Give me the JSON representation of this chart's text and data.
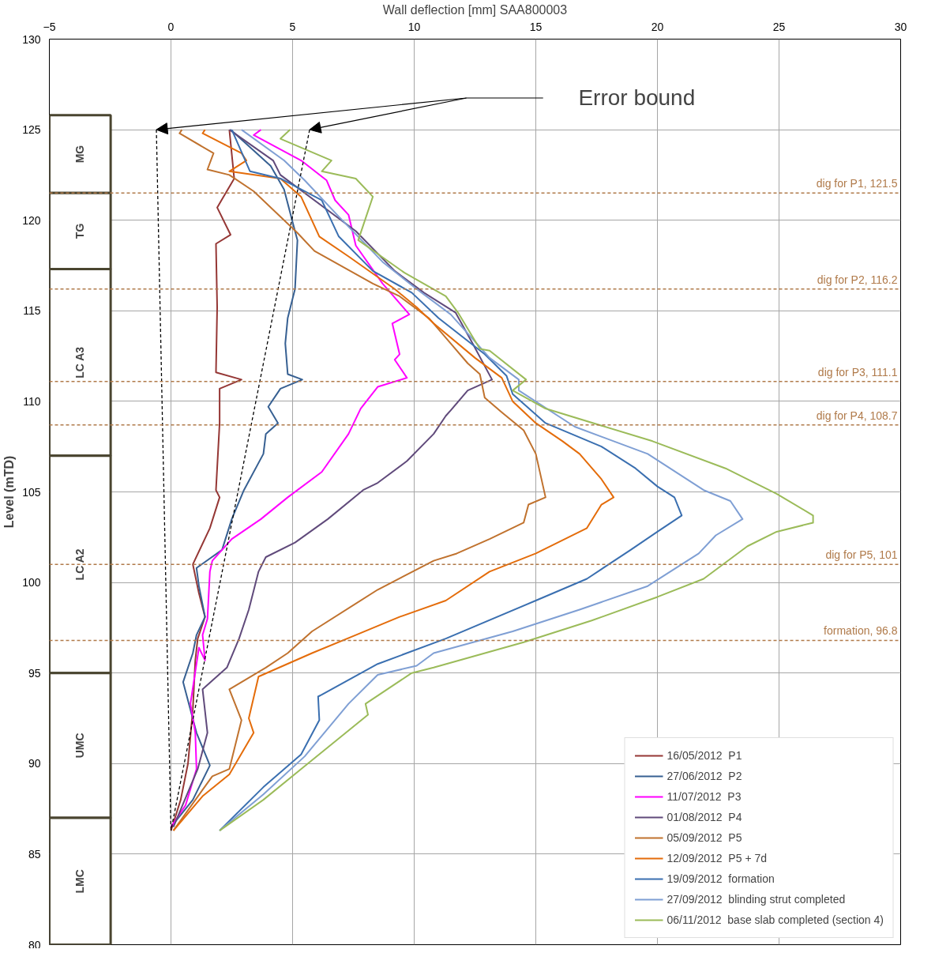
{
  "chart_data": {
    "type": "line",
    "xlabel": "Wall deflection [mm] SAA800003",
    "ylabel": "Level (mTD)",
    "xlim": [
      -5,
      30
    ],
    "xticks": [
      -5,
      0,
      5,
      10,
      15,
      20,
      25,
      30
    ],
    "ylim": [
      80,
      130
    ],
    "yticks": [
      80,
      85,
      90,
      95,
      100,
      105,
      110,
      115,
      120,
      125,
      130
    ],
    "grid": true,
    "legend": "bottom right",
    "line_style": "solid",
    "marker": "none",
    "series": [
      {
        "name": "16/05/2012  P1",
        "color": "#953735",
        "x": [
          2.4,
          2.6,
          1.9,
          2.45,
          1.85,
          1.9,
          1.85,
          2.9,
          2.0,
          2.0,
          1.85,
          2.0,
          1.6,
          0.9,
          1.15,
          1.4,
          1.1,
          1.0,
          0.9,
          0.7,
          0.4,
          0
        ],
        "values": [
          125,
          122.3,
          120.7,
          119.2,
          118.7,
          115.2,
          111.6,
          111.2,
          110.7,
          108.8,
          105.1,
          104.7,
          103,
          101,
          99.4,
          98.1,
          96.9,
          95.7,
          93,
          90,
          88,
          86.3
        ]
      },
      {
        "name": "27/06/2012  P2",
        "color": "#376092",
        "x": [
          2.45,
          4.1,
          4.65,
          5.0,
          5.2,
          5.1,
          4.8,
          4.7,
          4.8,
          5.4,
          4.5,
          4.0,
          4.4,
          3.9,
          3.8,
          3.0,
          2.5,
          2.1,
          1.05,
          1.15,
          1.4,
          1.05,
          0.9,
          0.5,
          1.05,
          1.6,
          0.9,
          0
        ],
        "values": [
          125,
          123,
          121.7,
          119.9,
          118.9,
          116.2,
          114.6,
          113.2,
          111.5,
          111.2,
          110.7,
          109.7,
          108.8,
          108.2,
          107.1,
          105.1,
          103.5,
          101.8,
          100.8,
          99.8,
          98.1,
          97.1,
          96.1,
          94.5,
          91.7,
          89.9,
          88,
          86.5
        ]
      },
      {
        "name": "11/07/2012  P3",
        "color": "#ff00ff",
        "x": [
          3.7,
          3.4,
          5.35,
          6.4,
          6.75,
          7.3,
          7.6,
          8.7,
          9.8,
          9.1,
          9.4,
          9.2,
          9.7,
          8.5,
          7.8,
          7.3,
          6.2,
          4.8,
          3.7,
          2.5,
          1.7,
          1.6,
          1.5,
          1.3,
          1.4,
          1.15,
          0.8,
          1.0,
          1.05,
          0.6,
          0
        ],
        "values": [
          125,
          124.7,
          123.3,
          122.2,
          121.1,
          120.3,
          118.6,
          116.5,
          114.8,
          114.3,
          112.6,
          112.3,
          111.3,
          110.8,
          109.6,
          108.2,
          106.1,
          104.7,
          103.5,
          102.4,
          101.2,
          100.6,
          98,
          97.1,
          95.7,
          96.4,
          93.3,
          91.7,
          89.7,
          87.7,
          86.5
        ]
      },
      {
        "name": "01/08/2012  P4",
        "color": "#604a7b",
        "x": [
          2.4,
          4.2,
          4.5,
          7.6,
          9.2,
          10.4,
          11.7,
          12.4,
          13.2,
          12.2,
          11.5,
          11.3,
          10.8,
          9.7,
          8.5,
          7.9,
          6.45,
          5.1,
          3.9,
          3.6,
          3.2,
          2.8,
          2.3,
          1.3,
          1.5,
          1.1,
          0.1
        ],
        "values": [
          125,
          123.3,
          122.5,
          119.4,
          117.2,
          116,
          114.9,
          113.2,
          111.2,
          110.6,
          109.5,
          109.2,
          108.2,
          106.7,
          105.5,
          105.1,
          103.5,
          102.2,
          101.4,
          100.6,
          98.5,
          96.9,
          95.3,
          94.1,
          91.7,
          89.7,
          86.5
        ]
      },
      {
        "name": "05/09/2012  P5",
        "color": "#c0722e",
        "x": [
          0.45,
          0.35,
          1.75,
          1.5,
          2.4,
          3.4,
          5.2,
          5.9,
          8.3,
          9.4,
          10.6,
          11.5,
          12.2,
          12.7,
          12.9,
          13.6,
          14.5,
          15.0,
          15.2,
          15.4,
          14.7,
          14.5,
          13.1,
          11.75,
          10.8,
          8.5,
          5.8,
          4.8,
          3.9,
          2.4,
          2.9,
          2.4,
          1.7,
          0.1
        ],
        "values": [
          125,
          124.8,
          123.7,
          122.8,
          122.5,
          121.6,
          119.3,
          118.3,
          116.5,
          115.8,
          114.6,
          113.2,
          112.1,
          111.5,
          110.2,
          109.4,
          108.4,
          107.1,
          105.9,
          104.7,
          104.3,
          103.3,
          102.4,
          101.6,
          101.2,
          99.6,
          97.3,
          96.1,
          95.3,
          94.1,
          92.4,
          89.7,
          89.3,
          86.3
        ]
      },
      {
        "name": "12/09/2012  P5 + 7d",
        "color": "#e46c0a",
        "x": [
          1.4,
          1.3,
          2.9,
          3.1,
          2.4,
          4.5,
          5.35,
          6.1,
          7.3,
          9.2,
          10.1,
          10.8,
          12.5,
          13.6,
          14.05,
          15.0,
          16.1,
          16.8,
          17.7,
          18.2,
          17.7,
          17.1,
          15.0,
          13.1,
          11.3,
          9.4,
          7.6,
          5.8,
          3.6,
          3.2,
          3.4,
          2.4,
          1.3,
          0.1
        ],
        "values": [
          125,
          124.8,
          123.7,
          123.3,
          122.7,
          122.3,
          121.3,
          119.1,
          118,
          116.2,
          115.2,
          114.3,
          112.4,
          111.3,
          110,
          108.8,
          107.8,
          107.1,
          105.7,
          104.7,
          104.3,
          103,
          101.6,
          100.6,
          99,
          98.1,
          97.1,
          96.1,
          94.8,
          92.5,
          91.7,
          89.4,
          88.2,
          86.3
        ]
      },
      {
        "name": "19/09/2012  formation",
        "color": "#3a6fb0",
        "x": [
          2.5,
          3.25,
          4.5,
          6.2,
          6.9,
          8.3,
          9.9,
          11.0,
          12.9,
          13.8,
          14.05,
          15.4,
          17.7,
          19.1,
          20.0,
          20.7,
          21.0,
          20.0,
          18.9,
          17.1,
          15.0,
          11.3,
          8.5,
          6.2,
          6.05,
          6.1,
          5.35,
          3.8,
          2.0
        ],
        "values": [
          125,
          122.7,
          122.3,
          121.1,
          119.1,
          117.2,
          116,
          114.6,
          112.6,
          111.4,
          110.4,
          108.8,
          107.5,
          106.3,
          105.3,
          104.7,
          103.7,
          102.8,
          101.8,
          100.2,
          99,
          96.9,
          95.5,
          93.8,
          93.7,
          92.4,
          90.5,
          88.7,
          86.3
        ]
      },
      {
        "name": "27/09/2012  blinding strut completed",
        "color": "#7f9fd4",
        "x": [
          2.9,
          4.65,
          5.5,
          6.9,
          8.7,
          10.1,
          11.5,
          13.1,
          14.3,
          14.3,
          16.6,
          19.6,
          21.9,
          23.0,
          23.5,
          22.4,
          21.7,
          19.6,
          16.8,
          14.05,
          10.8,
          10.1,
          8.5,
          7.3,
          5.5,
          3.8,
          2.0
        ],
        "values": [
          125,
          123.3,
          122.2,
          120.2,
          117.7,
          116.2,
          114.8,
          112.4,
          111.2,
          110.6,
          108.6,
          107.1,
          105.1,
          104.5,
          103.5,
          102.6,
          101.6,
          99.8,
          98.5,
          97.3,
          96.1,
          95.4,
          94.9,
          93.3,
          90.4,
          88.3,
          86.3
        ]
      },
      {
        "name": "06/11/2012  base slab completed (section 4)",
        "color": "#9bbb59",
        "x": [
          4.9,
          4.5,
          6.6,
          6.2,
          7.6,
          8.3,
          7.7,
          9.6,
          11.3,
          11.8,
          12.7,
          13.1,
          14.6,
          14.05,
          15.4,
          19.8,
          22.8,
          24.9,
          26.4,
          26.4,
          24.9,
          23.7,
          21.9,
          20.0,
          17.3,
          14.5,
          10.8,
          9.9,
          8.0,
          8.1,
          5.35,
          3.8,
          2.0
        ],
        "values": [
          125,
          124.5,
          123.3,
          122.7,
          122.3,
          121.3,
          118.9,
          117.1,
          115.8,
          114.9,
          112.9,
          112.8,
          111.2,
          110.6,
          109.6,
          107.8,
          106.3,
          104.9,
          103.7,
          103.3,
          102.8,
          102.0,
          100.2,
          99.2,
          97.9,
          96.7,
          95.3,
          95.0,
          93.3,
          92.7,
          89.7,
          88.0,
          86.3
        ]
      },
      {
        "color": "#000000",
        "line_style": "dashed",
        "x": [
          -0.6,
          0
        ],
        "values": [
          125,
          86.3
        ]
      },
      {
        "color": "#000000",
        "line_style": "dashed",
        "x": [
          5.7,
          0
        ],
        "values": [
          125,
          86.3
        ]
      }
    ],
    "ref_lines": [
      {
        "axis": "y",
        "value": 121.5,
        "label": "dig for P1, 121.5",
        "color": "#b07a4a",
        "line_style": "dashed"
      },
      {
        "axis": "y",
        "value": 116.2,
        "label": "dig for P2, 116.2",
        "color": "#b07a4a",
        "line_style": "dashed"
      },
      {
        "axis": "y",
        "value": 111.1,
        "label": "dig for P3, 111.1",
        "color": "#b07a4a",
        "line_style": "dashed"
      },
      {
        "axis": "y",
        "value": 108.7,
        "label": "dig for P4, 108.7",
        "color": "#b07a4a",
        "line_style": "dashed"
      },
      {
        "axis": "y",
        "value": 101,
        "label": "dig for P5, 101",
        "color": "#b07a4a",
        "line_style": "dashed"
      },
      {
        "axis": "y",
        "value": 96.8,
        "label": "formation, 96.8",
        "color": "#b07a4a",
        "line_style": "dashed"
      }
    ],
    "bands": [
      {
        "axis": "y",
        "from": 121.5,
        "to": 125.8,
        "label": "MG",
        "color": "#4a4530"
      },
      {
        "axis": "y",
        "from": 117.3,
        "to": 121.5,
        "label": "TG",
        "color": "#4a4530"
      },
      {
        "axis": "y",
        "from": 107,
        "to": 117.3,
        "label": "LC A3",
        "color": "#4a4530"
      },
      {
        "axis": "y",
        "from": 95,
        "to": 107,
        "label": "LC A2",
        "color": "#4a4530"
      },
      {
        "axis": "y",
        "from": 87,
        "to": 95,
        "label": "UMC",
        "color": "#4a4530"
      },
      {
        "axis": "y",
        "from": 80,
        "to": 87,
        "label": "LMC",
        "color": "#4a4530"
      }
    ],
    "annotations": [
      "Error bound"
    ]
  }
}
